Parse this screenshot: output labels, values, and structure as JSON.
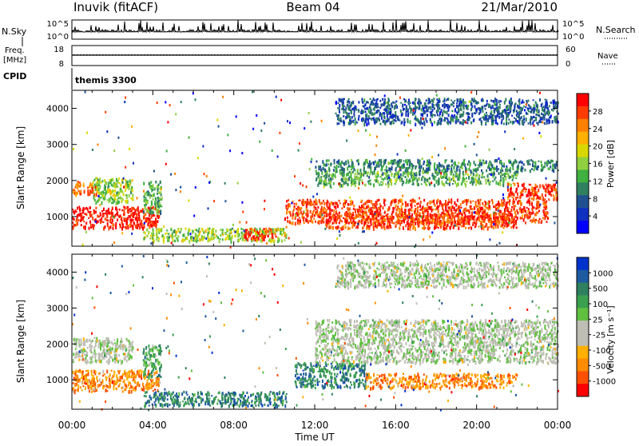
{
  "header": {
    "station": "Inuvik (fitACF)",
    "beam": "Beam 04",
    "date": "21/Mar/2010"
  },
  "noise_panel": {
    "left_label": "N.Sky",
    "left_ticks": [
      "10^5",
      "10^0"
    ],
    "right_label": "N.Search",
    "right_ticks": [
      "10^5",
      "10^0"
    ]
  },
  "freq_panel": {
    "left_label_1": "Freq.",
    "left_label_2": "[MHz]",
    "left_ticks": [
      "18",
      "8"
    ],
    "right_label": "Nave",
    "right_ticks": [
      "60",
      "0"
    ]
  },
  "cpid": {
    "label": "CPID",
    "value": "themis 3300"
  },
  "x_axis": {
    "label": "Time UT",
    "ticks": [
      "00:00",
      "04:00",
      "08:00",
      "12:00",
      "16:00",
      "20:00",
      "00:00"
    ]
  },
  "chart_data": [
    {
      "type": "heatmap",
      "name": "power",
      "ylabel": "Slant Range [km]",
      "yticks": [
        1000,
        2000,
        3000,
        4000
      ],
      "ylim": [
        180,
        4500
      ],
      "xlim_hours": [
        0,
        24
      ],
      "colorbar": {
        "label": "Power [dB]",
        "ticks": [
          "28",
          "24",
          "20",
          "16",
          "12",
          "8",
          "4"
        ],
        "colors": [
          "#ff0000",
          "#ff3c00",
          "#ff8000",
          "#ffb000",
          "#d8d800",
          "#90d040",
          "#40b040",
          "#308060",
          "#205090",
          "#1030c0",
          "#0000ff"
        ]
      },
      "regions": [
        {
          "t": [
            0.0,
            4.3
          ],
          "r": [
            700,
            1300
          ],
          "level": 0
        },
        {
          "t": [
            0.0,
            1.2
          ],
          "r": [
            1600,
            2000
          ],
          "level": 2
        },
        {
          "t": [
            1.0,
            3.0
          ],
          "r": [
            1400,
            2100
          ],
          "level": 5
        },
        {
          "t": [
            3.5,
            4.4
          ],
          "r": [
            1100,
            2000
          ],
          "level": 6
        },
        {
          "t": [
            3.5,
            10.6
          ],
          "r": [
            350,
            700
          ],
          "level": 5
        },
        {
          "t": [
            8.5,
            10.2
          ],
          "r": [
            400,
            700
          ],
          "level": 1
        },
        {
          "t": [
            10.5,
            23.5
          ],
          "r": [
            850,
            1500
          ],
          "level": 1
        },
        {
          "t": [
            12.5,
            22.0
          ],
          "r": [
            700,
            1100
          ],
          "level": 1
        },
        {
          "t": [
            12.0,
            22.0
          ],
          "r": [
            1900,
            2300
          ],
          "level": 6
        },
        {
          "t": [
            12.0,
            24.0
          ],
          "r": [
            2300,
            2600
          ],
          "level": 7
        },
        {
          "t": [
            21.5,
            24.0
          ],
          "r": [
            1500,
            1950
          ],
          "level": 1
        },
        {
          "t": [
            13.0,
            24.0
          ],
          "r": [
            3600,
            4300
          ],
          "level": 8
        }
      ]
    },
    {
      "type": "heatmap",
      "name": "velocity",
      "ylabel": "Slant Range [km]",
      "yticks": [
        1000,
        2000,
        3000,
        4000
      ],
      "ylim": [
        180,
        4500
      ],
      "xlim_hours": [
        0,
        24
      ],
      "colorbar": {
        "label": "Velocity [m s⁻¹]",
        "ticks": [
          "1000",
          "500",
          "100",
          "25",
          "-25",
          "-100",
          "-500",
          "-1000"
        ],
        "colors": [
          "#0033cc",
          "#1e5aa0",
          "#2f8060",
          "#3aa050",
          "#60c040",
          "#bebeb4",
          "#bebeb4",
          "#ffb000",
          "#ff8c00",
          "#ff5000",
          "#ff0000"
        ]
      },
      "regions": [
        {
          "t": [
            0.0,
            4.3
          ],
          "r": [
            700,
            1300
          ],
          "level": 8
        },
        {
          "t": [
            0.0,
            3.0
          ],
          "r": [
            1500,
            2200
          ],
          "level": 5
        },
        {
          "t": [
            3.5,
            4.4
          ],
          "r": [
            1100,
            2000
          ],
          "level": 3
        },
        {
          "t": [
            3.5,
            10.6
          ],
          "r": [
            300,
            700
          ],
          "level": 2
        },
        {
          "t": [
            11.0,
            14.5
          ],
          "r": [
            800,
            1500
          ],
          "level": 2
        },
        {
          "t": [
            14.5,
            22.0
          ],
          "r": [
            800,
            1200
          ],
          "level": 8
        },
        {
          "t": [
            12.0,
            24.0
          ],
          "r": [
            1500,
            2700
          ],
          "level": 5
        },
        {
          "t": [
            13.0,
            24.0
          ],
          "r": [
            3600,
            4300
          ],
          "level": 5
        }
      ]
    }
  ]
}
